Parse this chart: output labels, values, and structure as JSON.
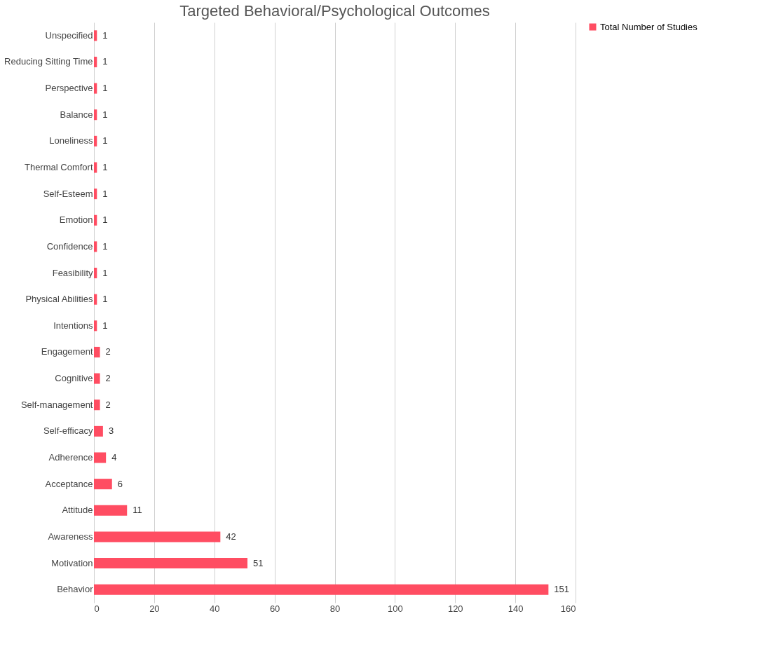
{
  "chart_data": {
    "type": "bar",
    "orientation": "horizontal",
    "title": "Targeted Behavioral/Psychological Outcomes",
    "categories": [
      "Unspecified",
      "Reducing Sitting Time",
      "Perspective",
      "Balance",
      "Loneliness",
      "Thermal Comfort",
      "Self-Esteem",
      "Emotion",
      "Confidence",
      "Feasibility",
      "Physical Abilities",
      "Intentions",
      "Engagement",
      "Cognitive",
      "Self-management",
      "Self-efficacy",
      "Adherence",
      "Acceptance",
      "Attitude",
      "Awareness",
      "Motivation",
      "Behavior"
    ],
    "series": [
      {
        "name": "Total Number of Studies",
        "color": "#ff4d62",
        "values": [
          1,
          1,
          1,
          1,
          1,
          1,
          1,
          1,
          1,
          1,
          1,
          1,
          2,
          2,
          2,
          3,
          4,
          6,
          11,
          42,
          51,
          151
        ]
      }
    ],
    "xlim": [
      0,
      160
    ],
    "xticks": [
      0,
      20,
      40,
      60,
      80,
      100,
      120,
      140,
      160
    ],
    "grid": "x",
    "legend": "right",
    "data_labels": true
  }
}
